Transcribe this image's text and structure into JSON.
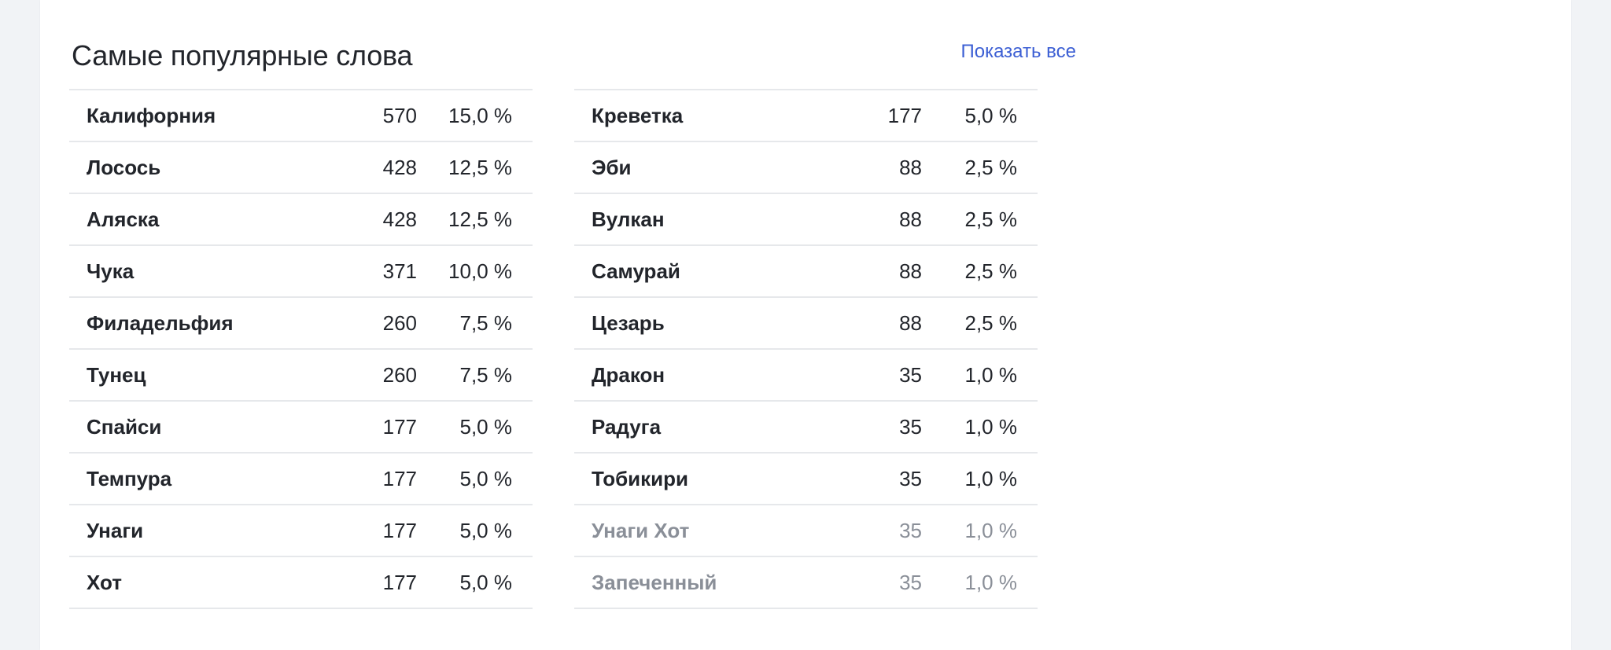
{
  "card": {
    "title": "Самые популярные слова",
    "show_all_label": "Показать все"
  },
  "colors": {
    "link": "#3c5fd4",
    "text": "#22252b",
    "muted": "#8a8f98",
    "divider": "#e6e8eb"
  },
  "left_table": {
    "rows": [
      {
        "word": "Калифорния",
        "count": "570",
        "percent": "15,0 %"
      },
      {
        "word": "Лосось",
        "count": "428",
        "percent": "12,5 %"
      },
      {
        "word": "Аляска",
        "count": "428",
        "percent": "12,5 %"
      },
      {
        "word": "Чука",
        "count": "371",
        "percent": "10,0 %"
      },
      {
        "word": "Филадельфия",
        "count": "260",
        "percent": "7,5 %"
      },
      {
        "word": "Тунец",
        "count": "260",
        "percent": "7,5 %"
      },
      {
        "word": "Спайси",
        "count": "177",
        "percent": "5,0 %"
      },
      {
        "word": "Темпура",
        "count": "177",
        "percent": "5,0 %"
      },
      {
        "word": "Унаги",
        "count": "177",
        "percent": "5,0 %"
      },
      {
        "word": "Хот",
        "count": "177",
        "percent": "5,0 %"
      }
    ]
  },
  "right_table": {
    "rows": [
      {
        "word": "Креветка",
        "count": "177",
        "percent": "5,0 %"
      },
      {
        "word": "Эби",
        "count": "88",
        "percent": "2,5 %"
      },
      {
        "word": "Вулкан",
        "count": "88",
        "percent": "2,5 %"
      },
      {
        "word": "Самурай",
        "count": "88",
        "percent": "2,5 %"
      },
      {
        "word": "Цезарь",
        "count": "88",
        "percent": "2,5 %"
      },
      {
        "word": "Дракон",
        "count": "35",
        "percent": "1,0 %"
      },
      {
        "word": "Радуга",
        "count": "35",
        "percent": "1,0 %"
      },
      {
        "word": "Тобикири",
        "count": "35",
        "percent": "1,0 %"
      },
      {
        "word": "Унаги Хот",
        "count": "35",
        "percent": "1,0 %"
      },
      {
        "word": "Запеченный",
        "count": "35",
        "percent": "1,0 %"
      }
    ]
  }
}
